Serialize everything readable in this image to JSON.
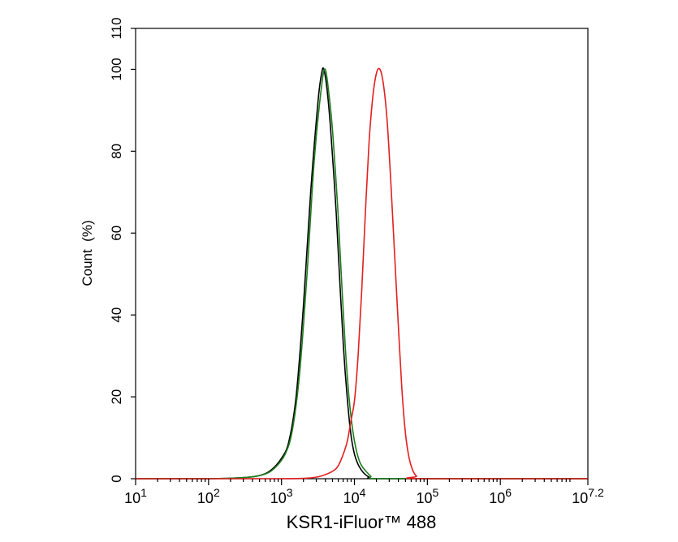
{
  "chart_data": {
    "type": "line",
    "xlabel": "KSR1-iFluor™ 488",
    "ylabel": "Count  (%)",
    "x_scale": "log10",
    "xlim": [
      10,
      15848932
    ],
    "ylim": [
      0,
      110
    ],
    "grid": false,
    "legend": "none",
    "y_ticks": [
      {
        "value": 0,
        "label": "0"
      },
      {
        "value": 20,
        "label": "20"
      },
      {
        "value": 40,
        "label": "40"
      },
      {
        "value": 60,
        "label": "60"
      },
      {
        "value": 80,
        "label": "80"
      },
      {
        "value": 100,
        "label": "100"
      },
      {
        "value": 110,
        "label": "110"
      }
    ],
    "x_ticks": [
      {
        "value": 10,
        "base": "10",
        "exp": "1"
      },
      {
        "value": 100,
        "base": "10",
        "exp": "2"
      },
      {
        "value": 1000,
        "base": "10",
        "exp": "3"
      },
      {
        "value": 10000,
        "base": "10",
        "exp": "4"
      },
      {
        "value": 100000,
        "base": "10",
        "exp": "5"
      },
      {
        "value": 1000000,
        "base": "10",
        "exp": "6"
      },
      {
        "value": 15848932,
        "base": "10",
        "exp": "7.2"
      }
    ],
    "series": [
      {
        "color": "#000000",
        "points": [
          [
            10,
            0
          ],
          [
            100,
            0
          ],
          [
            316,
            0.3
          ],
          [
            501,
            0.8
          ],
          [
            708,
            2
          ],
          [
            1000,
            5
          ],
          [
            1259,
            9
          ],
          [
            1585,
            20
          ],
          [
            1995,
            42
          ],
          [
            2512,
            70
          ],
          [
            3162,
            92
          ],
          [
            3548,
            99
          ],
          [
            3800,
            100
          ],
          [
            4217,
            95
          ],
          [
            4732,
            85
          ],
          [
            5623,
            65
          ],
          [
            6310,
            48
          ],
          [
            7079,
            32
          ],
          [
            7943,
            20
          ],
          [
            8913,
            11
          ],
          [
            10000,
            6
          ],
          [
            11220,
            3.5
          ],
          [
            12589,
            2
          ],
          [
            14125,
            1
          ],
          [
            15849,
            0.4
          ],
          [
            17783,
            0
          ],
          [
            100000,
            0
          ],
          [
            15848932,
            0
          ]
        ]
      },
      {
        "color": "#1e7d1e",
        "points": [
          [
            10,
            0
          ],
          [
            100,
            0
          ],
          [
            316,
            0.3
          ],
          [
            562,
            1
          ],
          [
            794,
            2.5
          ],
          [
            1122,
            6
          ],
          [
            1413,
            12
          ],
          [
            1778,
            26
          ],
          [
            2239,
            50
          ],
          [
            2818,
            78
          ],
          [
            3548,
            96
          ],
          [
            3981,
            100
          ],
          [
            4467,
            94
          ],
          [
            5012,
            85
          ],
          [
            5957,
            65
          ],
          [
            6683,
            48
          ],
          [
            7499,
            32
          ],
          [
            8414,
            20
          ],
          [
            9441,
            12
          ],
          [
            10593,
            7
          ],
          [
            11885,
            4
          ],
          [
            13335,
            2.5
          ],
          [
            14962,
            1.5
          ],
          [
            16788,
            0.6
          ],
          [
            18836,
            0
          ],
          [
            100000,
            0
          ],
          [
            15848932,
            0
          ]
        ]
      },
      {
        "color": "#e31f1f",
        "points": [
          [
            10,
            0
          ],
          [
            100,
            0
          ],
          [
            1000,
            0
          ],
          [
            2512,
            0.2
          ],
          [
            3981,
            1
          ],
          [
            5623,
            2.5
          ],
          [
            6683,
            5
          ],
          [
            7943,
            9
          ],
          [
            8913,
            14
          ],
          [
            10000,
            19
          ],
          [
            11220,
            30
          ],
          [
            12589,
            46
          ],
          [
            14125,
            65
          ],
          [
            15849,
            82
          ],
          [
            17783,
            93
          ],
          [
            20000,
            99
          ],
          [
            22387,
            100
          ],
          [
            25119,
            96
          ],
          [
            28184,
            87
          ],
          [
            31623,
            72
          ],
          [
            35481,
            55
          ],
          [
            39811,
            38
          ],
          [
            44668,
            22
          ],
          [
            50119,
            11
          ],
          [
            56234,
            5
          ],
          [
            63096,
            2
          ],
          [
            70795,
            0.6
          ],
          [
            79433,
            0
          ],
          [
            15848932,
            0
          ]
        ]
      }
    ]
  }
}
